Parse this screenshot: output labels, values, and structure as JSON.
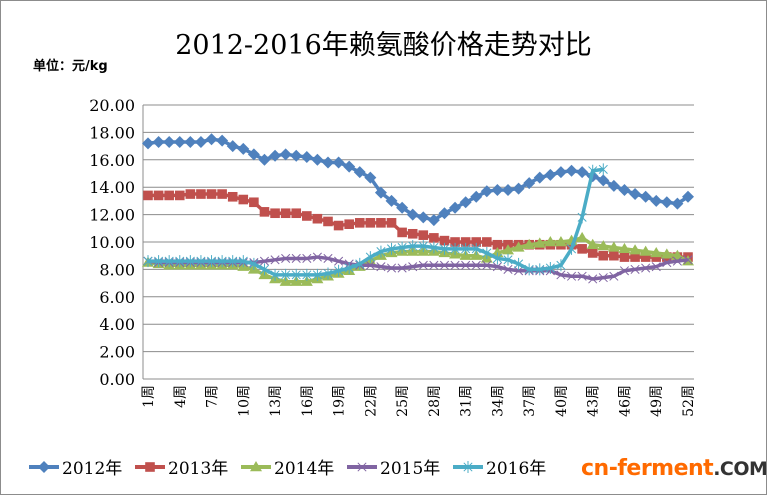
{
  "chart_data": {
    "type": "line",
    "title": "2012-2016年赖氨酸价格走势对比",
    "unit_label": "单位：元/kg",
    "ylim": [
      0,
      20
    ],
    "yticks": [
      "0.00",
      "2.00",
      "4.00",
      "6.00",
      "8.00",
      "10.00",
      "12.00",
      "14.00",
      "16.00",
      "18.00",
      "20.00"
    ],
    "x_tick_labels": [
      "1周",
      "4周",
      "7周",
      "10周",
      "13周",
      "16周",
      "19周",
      "22周",
      "25周",
      "28周",
      "31周",
      "34周",
      "37周",
      "40周",
      "43周",
      "46周",
      "49周",
      "52周"
    ],
    "x_tick_weeks": [
      1,
      4,
      7,
      10,
      13,
      16,
      19,
      22,
      25,
      28,
      31,
      34,
      37,
      40,
      43,
      46,
      49,
      52
    ],
    "grid": "horizontal",
    "legend_position": "bottom",
    "series": [
      {
        "name": "2012年",
        "color": "#4f81bd",
        "marker": "diamond",
        "values": [
          17.2,
          17.3,
          17.3,
          17.3,
          17.3,
          17.3,
          17.5,
          17.4,
          17.0,
          16.8,
          16.4,
          16.0,
          16.3,
          16.4,
          16.3,
          16.2,
          16.0,
          15.8,
          15.8,
          15.5,
          15.1,
          14.7,
          13.6,
          13.0,
          12.5,
          12.0,
          11.8,
          11.6,
          12.1,
          12.5,
          12.9,
          13.3,
          13.7,
          13.8,
          13.8,
          13.9,
          14.3,
          14.7,
          14.9,
          15.1,
          15.2,
          15.1,
          14.8,
          14.5,
          14.1,
          13.8,
          13.5,
          13.3,
          13.0,
          12.9,
          12.8,
          13.3
        ]
      },
      {
        "name": "2013年",
        "color": "#c0504d",
        "marker": "square",
        "values": [
          13.4,
          13.4,
          13.4,
          13.4,
          13.5,
          13.5,
          13.5,
          13.5,
          13.3,
          13.1,
          12.9,
          12.2,
          12.1,
          12.1,
          12.1,
          11.9,
          11.7,
          11.5,
          11.2,
          11.3,
          11.4,
          11.4,
          11.4,
          11.4,
          10.7,
          10.6,
          10.5,
          10.3,
          10.1,
          10.0,
          10.0,
          10.0,
          10.0,
          9.8,
          9.8,
          9.8,
          9.8,
          9.8,
          9.8,
          9.8,
          9.8,
          9.5,
          9.2,
          9.0,
          9.0,
          8.9,
          8.9,
          8.9,
          8.9,
          8.9,
          8.9,
          8.9
        ]
      },
      {
        "name": "2014年",
        "color": "#9bbb59",
        "marker": "triangle",
        "values": [
          8.5,
          8.4,
          8.3,
          8.3,
          8.3,
          8.3,
          8.3,
          8.3,
          8.3,
          8.2,
          8.0,
          7.6,
          7.3,
          7.1,
          7.1,
          7.1,
          7.3,
          7.5,
          7.7,
          7.9,
          8.2,
          8.6,
          9.0,
          9.2,
          9.3,
          9.3,
          9.3,
          9.3,
          9.2,
          9.1,
          9.0,
          9.0,
          8.8,
          9.2,
          9.4,
          9.6,
          9.8,
          9.9,
          10.0,
          10.0,
          10.1,
          10.3,
          9.8,
          9.7,
          9.6,
          9.5,
          9.4,
          9.3,
          9.2,
          9.1,
          9.0,
          8.6
        ]
      },
      {
        "name": "2015年",
        "color": "#8064a2",
        "marker": "x",
        "values": [
          8.6,
          8.5,
          8.5,
          8.5,
          8.5,
          8.5,
          8.5,
          8.5,
          8.5,
          8.5,
          8.5,
          8.6,
          8.7,
          8.8,
          8.8,
          8.8,
          8.9,
          8.8,
          8.6,
          8.4,
          8.3,
          8.3,
          8.2,
          8.1,
          8.1,
          8.2,
          8.3,
          8.3,
          8.3,
          8.3,
          8.3,
          8.3,
          8.3,
          8.2,
          8.0,
          7.9,
          7.9,
          7.9,
          7.9,
          7.6,
          7.5,
          7.5,
          7.3,
          7.4,
          7.5,
          7.9,
          8.0,
          8.1,
          8.2,
          8.5,
          8.6,
          8.7
        ]
      },
      {
        "name": "2016年",
        "color": "#4bacc6",
        "marker": "star",
        "values": [
          8.6,
          8.6,
          8.6,
          8.6,
          8.6,
          8.6,
          8.6,
          8.6,
          8.6,
          8.6,
          8.4,
          8.0,
          7.6,
          7.6,
          7.6,
          7.6,
          7.6,
          7.7,
          7.9,
          8.1,
          8.4,
          8.9,
          9.3,
          9.5,
          9.6,
          9.7,
          9.7,
          9.6,
          9.5,
          9.5,
          9.5,
          9.5,
          9.2,
          8.8,
          8.7,
          8.4,
          8.0,
          8.0,
          8.1,
          8.3,
          9.5,
          11.8,
          15.2,
          15.3
        ]
      }
    ]
  },
  "watermark": {
    "part1": "cn-ferment",
    "part2": ".COM"
  }
}
